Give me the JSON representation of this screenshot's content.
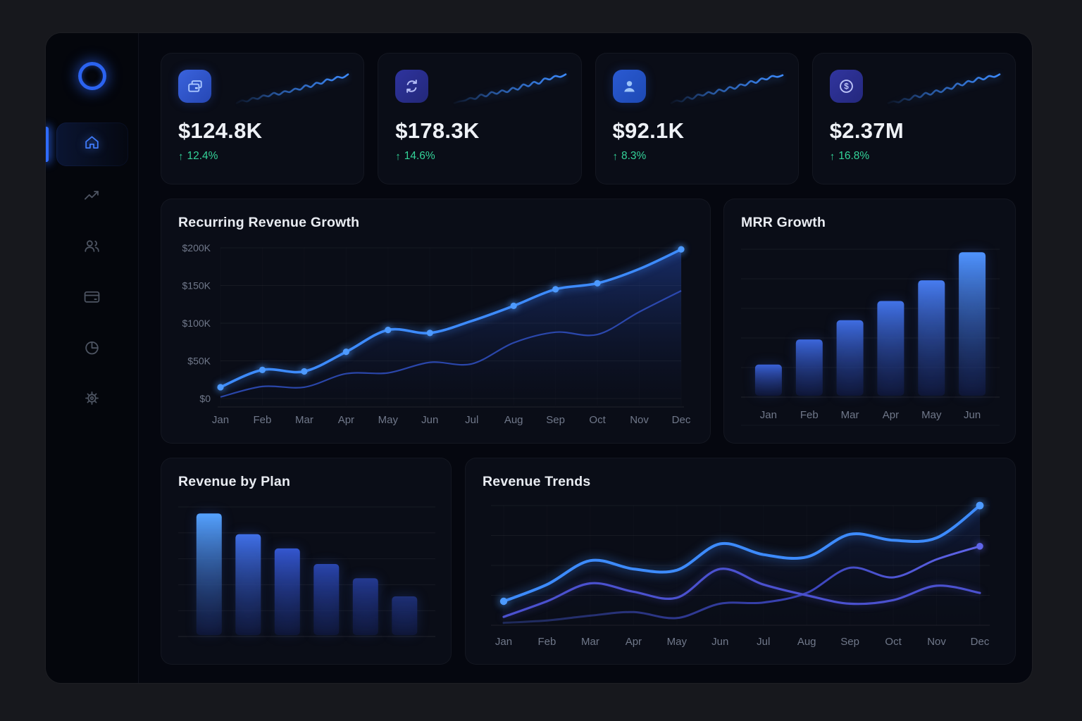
{
  "sidebar": {
    "logo": "ring-logo",
    "items": [
      {
        "id": "home",
        "icon": "home-icon",
        "active": true
      },
      {
        "id": "analytics",
        "icon": "line-chart-icon",
        "active": false
      },
      {
        "id": "customers",
        "icon": "users-icon",
        "active": false
      },
      {
        "id": "billing",
        "icon": "credit-card-icon",
        "active": false
      },
      {
        "id": "reports",
        "icon": "pie-chart-icon",
        "active": false
      },
      {
        "id": "settings",
        "icon": "gear-icon",
        "active": false
      }
    ]
  },
  "icons": {
    "up_arrow": "↑"
  },
  "kpi_cards": [
    {
      "icon": "wallet-icon",
      "value": "$124.8K",
      "change": "12.4%",
      "direction": "up",
      "sparkline": [
        3,
        6,
        5,
        9,
        8,
        12,
        11,
        15,
        13,
        17,
        16,
        20,
        19,
        24,
        22,
        27,
        26,
        31,
        30,
        34,
        33,
        37
      ]
    },
    {
      "icon": "sync-icon",
      "value": "$178.3K",
      "change": "14.6%",
      "direction": "up",
      "sparkline": [
        3,
        5,
        6,
        9,
        8,
        13,
        11,
        16,
        14,
        18,
        16,
        21,
        19,
        25,
        23,
        28,
        26,
        32,
        31,
        35,
        34,
        37
      ]
    },
    {
      "icon": "user-icon",
      "value": "$92.1K",
      "change": "8.3%",
      "direction": "up",
      "sparkline": [
        3,
        6,
        5,
        10,
        8,
        13,
        12,
        16,
        14,
        19,
        17,
        22,
        20,
        25,
        24,
        29,
        27,
        32,
        31,
        35,
        34,
        36
      ]
    },
    {
      "icon": "dollar-circle-icon",
      "value": "$2.37M",
      "change": "16.8%",
      "direction": "up",
      "sparkline": [
        3,
        5,
        4,
        8,
        7,
        12,
        10,
        15,
        13,
        18,
        16,
        21,
        20,
        26,
        24,
        29,
        28,
        33,
        31,
        35,
        34,
        37
      ]
    }
  ],
  "chart_data": [
    {
      "id": "recurring_revenue_growth",
      "type": "area",
      "title": "Recurring Revenue Growth",
      "categories": [
        "Jan",
        "Feb",
        "Mar",
        "Apr",
        "May",
        "Jun",
        "Jul",
        "Aug",
        "Sep",
        "Oct",
        "Nov",
        "Dec"
      ],
      "y_ticks": [
        "$0",
        "$50K",
        "$100K",
        "$150K",
        "$200K"
      ],
      "y_tick_values": [
        0,
        50,
        100,
        150,
        200
      ],
      "ylim": [
        0,
        200
      ],
      "unit": "$K",
      "series": [
        {
          "name": "mrr",
          "values": [
            15,
            38,
            36,
            62,
            91,
            87,
            103,
            123,
            145,
            153,
            172,
            198
          ]
        },
        {
          "name": "secondary",
          "values": [
            2,
            16,
            15,
            33,
            34,
            48,
            46,
            74,
            88,
            85,
            115,
            143
          ]
        }
      ]
    },
    {
      "id": "mrr_growth",
      "type": "bar",
      "title": "MRR Growth",
      "categories": [
        "Jan",
        "Feb",
        "Mar",
        "Apr",
        "May",
        "Jun"
      ],
      "values": [
        22,
        39,
        52,
        65,
        79,
        98
      ],
      "ylim": [
        0,
        100
      ]
    },
    {
      "id": "revenue_by_plan",
      "type": "bar",
      "title": "Revenue by Plan",
      "categories": [
        "",
        "",
        "",
        "",
        "",
        ""
      ],
      "values": [
        95,
        79,
        68,
        56,
        45,
        31
      ],
      "ylim": [
        0,
        100
      ]
    },
    {
      "id": "revenue_trends",
      "type": "line",
      "title": "Revenue Trends",
      "categories": [
        "Jan",
        "Feb",
        "Mar",
        "Apr",
        "May",
        "Jun",
        "Jul",
        "Aug",
        "Sep",
        "Oct",
        "Nov",
        "Dec"
      ],
      "ylim": [
        0,
        100
      ],
      "series": [
        {
          "name": "trend-bright",
          "values": [
            20,
            34,
            54,
            47,
            46,
            68,
            59,
            57,
            76,
            71,
            73,
            100
          ]
        },
        {
          "name": "trend-indigo",
          "values": [
            7,
            20,
            35,
            28,
            23,
            47,
            34,
            25,
            18,
            21,
            33,
            27
          ]
        },
        {
          "name": "trend-navy",
          "values": [
            2,
            4,
            8,
            11,
            6,
            18,
            19,
            27,
            48,
            40,
            55,
            66
          ]
        }
      ]
    }
  ],
  "colors": {
    "accent": "#3b82f6",
    "green": "#34d399",
    "line_main": "#3d8bfd",
    "line_secondary": "#3050c2",
    "trend_indigo": "#4b51cf",
    "trend_navy_start": "#233067",
    "trend_navy_end": "#6065ea",
    "axis_text": "#70788a",
    "grid": "rgba(255,255,255,0.055)",
    "mrr_bar_tops": [
      "#3a62d8",
      "#3c67dd",
      "#3f6de2",
      "#4273e8",
      "#477cf0",
      "#4f93ff"
    ],
    "plan_bar_tops": [
      "#55a2ff",
      "#4070e8",
      "#3457d0",
      "#2a46ae",
      "#243a92",
      "#1e3076"
    ],
    "bar_bottom": "rgba(18,27,74,0.5)"
  }
}
